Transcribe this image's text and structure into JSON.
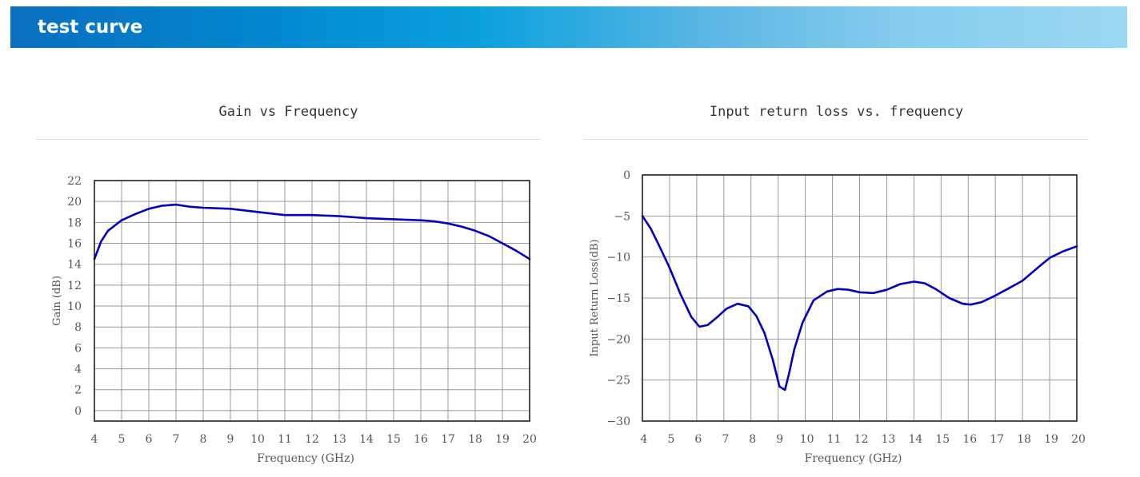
{
  "header": {
    "title": "test curve"
  },
  "chart_data": [
    {
      "type": "line",
      "title": "Gain vs Frequency",
      "xlabel": "Frequency (GHz)",
      "ylabel": "Gain (dB)",
      "xlim": [
        4,
        20
      ],
      "ylim": [
        -1,
        22
      ],
      "xticks": [
        4,
        5,
        6,
        7,
        8,
        9,
        10,
        11,
        12,
        13,
        14,
        15,
        16,
        17,
        18,
        19,
        20
      ],
      "yticks": [
        0,
        2,
        4,
        6,
        8,
        10,
        12,
        14,
        16,
        18,
        20,
        22
      ],
      "grid": true,
      "series_color": "#0000c0",
      "series": [
        {
          "x": [
            4,
            4.25,
            4.5,
            5,
            5.5,
            6,
            6.5,
            7,
            7.5,
            8,
            9,
            10,
            11,
            12,
            13,
            14,
            15,
            16,
            16.5,
            17,
            17.5,
            18,
            18.5,
            19,
            19.5,
            20
          ],
          "y": [
            14.5,
            16.2,
            17.2,
            18.2,
            18.8,
            19.3,
            19.6,
            19.7,
            19.5,
            19.4,
            19.3,
            19.0,
            18.7,
            18.7,
            18.6,
            18.4,
            18.3,
            18.2,
            18.1,
            17.9,
            17.6,
            17.2,
            16.7,
            16.0,
            15.3,
            14.5
          ]
        }
      ]
    },
    {
      "type": "line",
      "title": "Input return loss vs. frequency",
      "xlabel": "Frequency (GHz)",
      "ylabel": "Input Return Loss(dB)",
      "xlim": [
        4,
        20
      ],
      "ylim": [
        -30,
        0
      ],
      "xticks": [
        4,
        5,
        6,
        7,
        8,
        9,
        10,
        11,
        12,
        13,
        14,
        15,
        16,
        17,
        18,
        19,
        20
      ],
      "yticks": [
        0,
        -5,
        -10,
        -15,
        -20,
        -25,
        -30
      ],
      "ytick_labels": [
        "0",
        "−5",
        "−10",
        "−15",
        "−20",
        "−25",
        "−30"
      ],
      "grid": true,
      "series_color": "#0000c0",
      "series": [
        {
          "x": [
            4,
            4.3,
            4.6,
            5,
            5.4,
            5.8,
            6.1,
            6.4,
            6.8,
            7.1,
            7.5,
            7.9,
            8.2,
            8.5,
            8.8,
            9.05,
            9.25,
            9.4,
            9.6,
            9.9,
            10.3,
            10.8,
            11.2,
            11.6,
            12.0,
            12.5,
            13.0,
            13.5,
            14.0,
            14.4,
            14.8,
            15.3,
            15.8,
            16.1,
            16.5,
            17.0,
            17.5,
            18.0,
            18.6,
            19.0,
            19.5,
            20
          ],
          "y": [
            -5,
            -6.5,
            -8.5,
            -11.3,
            -14.5,
            -17.3,
            -18.5,
            -18.3,
            -17.2,
            -16.3,
            -15.7,
            -16.0,
            -17.2,
            -19.3,
            -22.5,
            -25.8,
            -26.2,
            -24.2,
            -21.2,
            -18.0,
            -15.3,
            -14.2,
            -13.9,
            -14.0,
            -14.3,
            -14.4,
            -14.0,
            -13.3,
            -13.0,
            -13.2,
            -13.9,
            -15.0,
            -15.7,
            -15.8,
            -15.5,
            -14.7,
            -13.8,
            -12.9,
            -11.2,
            -10.1,
            -9.3,
            -8.7
          ]
        }
      ]
    }
  ]
}
